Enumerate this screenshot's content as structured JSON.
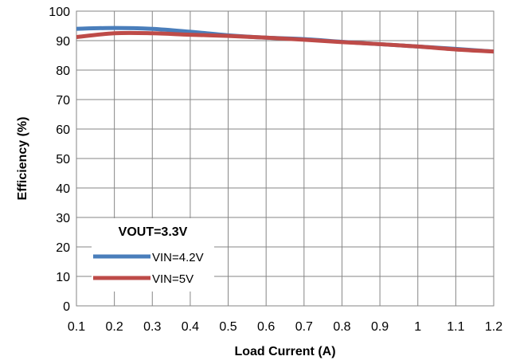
{
  "chart_data": {
    "type": "line",
    "xlabel": "Load Current (A)",
    "ylabel": "Efficiency (%)",
    "xlim": [
      0.1,
      1.2
    ],
    "ylim": [
      0,
      100
    ],
    "x_ticks": [
      "0.1",
      "0.2",
      "0.3",
      "0.4",
      "0.5",
      "0.6",
      "0.7",
      "0.8",
      "0.9",
      "1",
      "1.1",
      "1.2"
    ],
    "y_ticks": [
      "0",
      "10",
      "20",
      "30",
      "40",
      "50",
      "60",
      "70",
      "80",
      "90",
      "100"
    ],
    "grid": true,
    "legend": {
      "title": "VOUT=3.3V",
      "placement": "bottom-left"
    },
    "x": [
      0.1,
      0.2,
      0.3,
      0.4,
      0.5,
      0.6,
      0.7,
      0.8,
      0.9,
      1.0,
      1.1,
      1.2
    ],
    "series": [
      {
        "name": "VIN=4.2V",
        "color": "#4a7ebb",
        "values": [
          94.0,
          94.3,
          94.0,
          93.0,
          91.8,
          91.0,
          90.5,
          89.6,
          88.8,
          88.0,
          87.2,
          86.3
        ]
      },
      {
        "name": "VIN=5V",
        "color": "#be4b48",
        "values": [
          91.2,
          92.5,
          92.5,
          92.0,
          91.6,
          91.0,
          90.3,
          89.5,
          88.8,
          88.0,
          87.0,
          86.3
        ]
      }
    ]
  }
}
